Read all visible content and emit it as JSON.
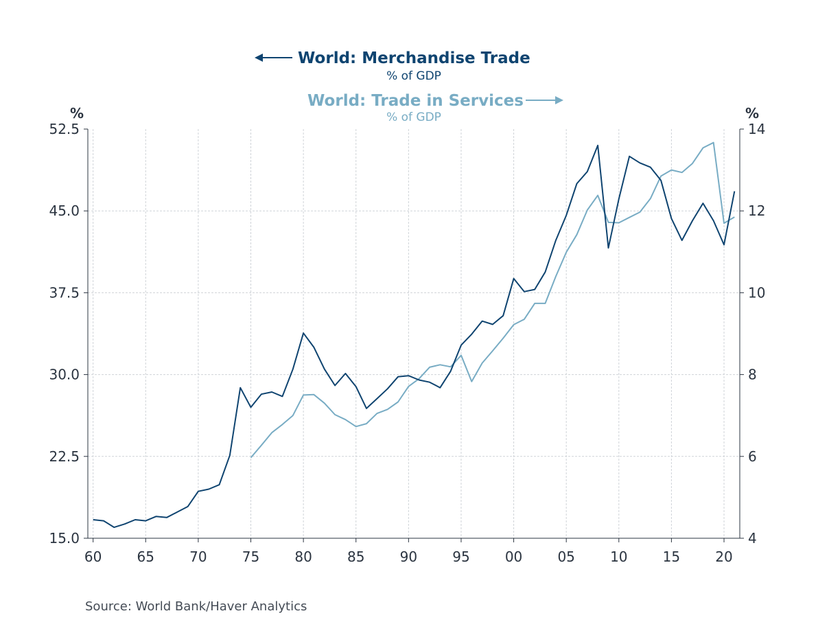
{
  "chart_data": {
    "type": "line",
    "series": [
      {
        "name": "World: Merchandise Trade",
        "subtitle": "% of GDP",
        "axis": "left",
        "color": "#0f4470",
        "x": [
          1960,
          1961,
          1962,
          1963,
          1964,
          1965,
          1966,
          1967,
          1968,
          1969,
          1970,
          1971,
          1972,
          1973,
          1974,
          1975,
          1976,
          1977,
          1978,
          1979,
          1980,
          1981,
          1982,
          1983,
          1984,
          1985,
          1986,
          1987,
          1988,
          1989,
          1990,
          1991,
          1992,
          1993,
          1994,
          1995,
          1996,
          1997,
          1998,
          1999,
          2000,
          2001,
          2002,
          2003,
          2004,
          2005,
          2006,
          2007,
          2008,
          2009,
          2010,
          2011,
          2012,
          2013,
          2014,
          2015,
          2016,
          2017,
          2018,
          2019,
          2020,
          2021
        ],
        "values": [
          16.7,
          16.6,
          16.0,
          16.3,
          16.7,
          16.6,
          17.0,
          16.9,
          17.4,
          17.9,
          19.3,
          19.5,
          19.9,
          22.6,
          28.8,
          27.0,
          28.2,
          28.4,
          28.0,
          30.5,
          33.8,
          32.5,
          30.5,
          29.0,
          30.1,
          28.9,
          26.9,
          27.8,
          28.7,
          29.8,
          29.9,
          29.5,
          29.3,
          28.8,
          30.3,
          32.7,
          33.7,
          34.9,
          34.6,
          35.4,
          38.8,
          37.6,
          37.8,
          39.4,
          42.3,
          44.6,
          47.5,
          48.6,
          51.0,
          41.6,
          46.1,
          50.0,
          49.4,
          49.0,
          47.8,
          44.3,
          42.3,
          44.1,
          45.7,
          44.1,
          41.9,
          46.8
        ]
      },
      {
        "name": "World: Trade in Services",
        "subtitle": "% of GDP",
        "axis": "right",
        "color": "#78acc4",
        "x": [
          1975,
          1976,
          1977,
          1978,
          1979,
          1980,
          1981,
          1982,
          1983,
          1984,
          1985,
          1986,
          1987,
          1988,
          1989,
          1990,
          1991,
          1992,
          1993,
          1994,
          1995,
          1996,
          1997,
          1998,
          1999,
          2000,
          2001,
          2002,
          2003,
          2004,
          2005,
          2006,
          2007,
          2008,
          2009,
          2010,
          2011,
          2012,
          2013,
          2014,
          2015,
          2016,
          2017,
          2018,
          2019,
          2020,
          2021
        ],
        "values": [
          5.97,
          6.27,
          6.58,
          6.78,
          7.0,
          7.5,
          7.51,
          7.3,
          7.02,
          6.9,
          6.73,
          6.8,
          7.05,
          7.15,
          7.33,
          7.71,
          7.9,
          8.18,
          8.24,
          8.19,
          8.47,
          7.83,
          8.28,
          8.58,
          8.89,
          9.22,
          9.35,
          9.74,
          9.74,
          10.4,
          10.99,
          11.42,
          12.02,
          12.38,
          11.72,
          11.71,
          11.84,
          11.97,
          12.3,
          12.85,
          13.0,
          12.94,
          13.16,
          13.54,
          13.67,
          11.7,
          11.85
        ]
      }
    ],
    "left_axis": {
      "unit": "%",
      "min": 15.0,
      "max": 52.5,
      "ticks": [
        "15.0",
        "22.5",
        "30.0",
        "37.5",
        "45.0",
        "52.5"
      ]
    },
    "right_axis": {
      "unit": "%",
      "min": 4,
      "max": 14,
      "ticks": [
        "4",
        "6",
        "8",
        "10",
        "12",
        "14"
      ]
    },
    "x_axis": {
      "min": 1959.5,
      "max": 2021.5,
      "tick_years": [
        1960,
        1965,
        1970,
        1975,
        1980,
        1985,
        1990,
        1995,
        2000,
        2005,
        2010,
        2015,
        2020
      ],
      "tick_labels": [
        "60",
        "65",
        "70",
        "75",
        "80",
        "85",
        "90",
        "95",
        "00",
        "05",
        "10",
        "15",
        "20"
      ]
    },
    "grid": true,
    "source": "Source:  World Bank/Haver Analytics"
  }
}
